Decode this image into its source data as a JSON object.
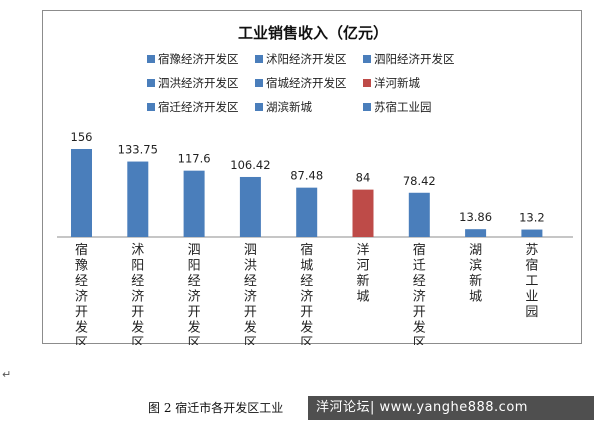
{
  "chart_data": {
    "type": "bar",
    "title": "工业销售收入（亿元）",
    "categories": [
      "宿豫经济开发区",
      "沭阳经济开发区",
      "泗阳经济开发区",
      "泗洪经济开发区",
      "宿城经济开发区",
      "洋河新城",
      "宿迁经济开发区",
      "湖滨新城",
      "苏宿工业园"
    ],
    "values": [
      156,
      133.75,
      117.6,
      106.42,
      87.48,
      84,
      78.42,
      13.86,
      13.2
    ],
    "value_labels": [
      "156",
      "133.75",
      "117.6",
      "106.42",
      "87.48",
      "84",
      "78.42",
      "13.86",
      "13.2"
    ],
    "colors": [
      "#4a7ebb",
      "#4a7ebb",
      "#4a7ebb",
      "#4a7ebb",
      "#4a7ebb",
      "#be4b48",
      "#4a7ebb",
      "#4a7ebb",
      "#4a7ebb"
    ],
    "ylim": [
      0,
      156
    ],
    "grid": false,
    "legend": {
      "placement": "top",
      "entries": [
        "宿豫经济开发区",
        "沭阳经济开发区",
        "泗阳经济开发区",
        "泗洪经济开发区",
        "宿城经济开发区",
        "洋河新城",
        "宿迁经济开发区",
        "湖滨新城",
        "苏宿工业园"
      ]
    }
  },
  "paragraph_mark": "↵",
  "caption": "图 2  宿迁市各开发区工业",
  "watermark": "洋河论坛| www.yanghe888.com"
}
